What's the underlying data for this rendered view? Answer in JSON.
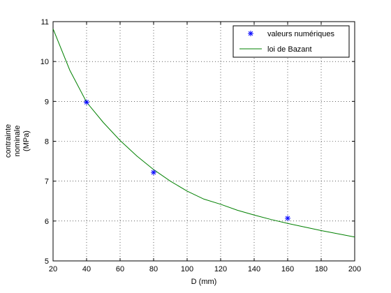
{
  "chart_data": {
    "type": "line",
    "xlabel": "D (mm)",
    "ylabel_lines": [
      "contrainte",
      "nominale",
      "(MPa)"
    ],
    "xlim": [
      20,
      200
    ],
    "ylim": [
      5,
      11
    ],
    "xticks": [
      20,
      40,
      60,
      80,
      100,
      120,
      140,
      160,
      180,
      200
    ],
    "yticks": [
      5,
      6,
      7,
      8,
      9,
      10,
      11
    ],
    "grid": true,
    "legend_position": "top-right",
    "series": [
      {
        "name": "valeurs numériques",
        "kind": "scatter",
        "marker": "asterisk",
        "color": "#0000ff",
        "x": [
          40,
          80,
          160
        ],
        "y": [
          8.98,
          7.22,
          6.07
        ]
      },
      {
        "name": "loi de Bazant",
        "kind": "line",
        "color": "#008000",
        "x": [
          20,
          30,
          40,
          50,
          60,
          70,
          80,
          90,
          100,
          110,
          120,
          130,
          140,
          150,
          160,
          170,
          180,
          190,
          200
        ],
        "y": [
          10.82,
          9.78,
          8.98,
          8.47,
          8.02,
          7.63,
          7.29,
          7.0,
          6.75,
          6.55,
          6.42,
          6.27,
          6.15,
          6.04,
          5.94,
          5.85,
          5.76,
          5.68,
          5.6
        ]
      }
    ]
  }
}
